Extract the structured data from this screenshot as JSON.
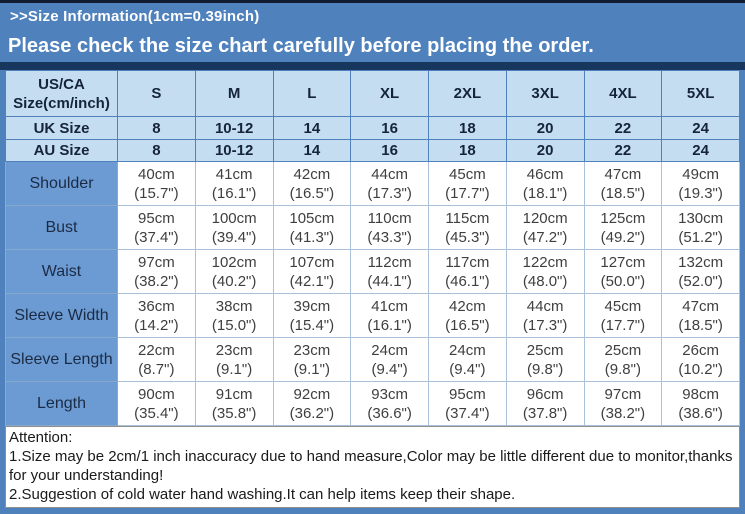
{
  "page": {
    "title_bar": ">>Size Information(1cm=0.39inch)",
    "notice_bar": "Please check the size chart carefully before placing the order."
  },
  "size_table": {
    "us_ca_label": "US/CA Size(cm/inch)",
    "sizes": [
      "S",
      "M",
      "L",
      "XL",
      "2XL",
      "3XL",
      "4XL",
      "5XL"
    ],
    "uk": {
      "label": "UK Size",
      "values": [
        "8",
        "10-12",
        "14",
        "16",
        "18",
        "20",
        "22",
        "24"
      ]
    },
    "au": {
      "label": "AU Size",
      "values": [
        "8",
        "10-12",
        "14",
        "16",
        "18",
        "20",
        "22",
        "24"
      ]
    },
    "rows": [
      {
        "label": "Shoulder",
        "cm": [
          "40cm",
          "41cm",
          "42cm",
          "44cm",
          "45cm",
          "46cm",
          "47cm",
          "49cm"
        ],
        "inch": [
          "(15.7\")",
          "(16.1\")",
          "(16.5\")",
          "(17.3\")",
          "(17.7\")",
          "(18.1\")",
          "(18.5\")",
          "(19.3\")"
        ]
      },
      {
        "label": "Bust",
        "cm": [
          "95cm",
          "100cm",
          "105cm",
          "110cm",
          "115cm",
          "120cm",
          "125cm",
          "130cm"
        ],
        "inch": [
          "(37.4\")",
          "(39.4\")",
          "(41.3\")",
          "(43.3\")",
          "(45.3\")",
          "(47.2\")",
          "(49.2\")",
          "(51.2\")"
        ]
      },
      {
        "label": "Waist",
        "cm": [
          "97cm",
          "102cm",
          "107cm",
          "112cm",
          "117cm",
          "122cm",
          "127cm",
          "132cm"
        ],
        "inch": [
          "(38.2\")",
          "(40.2\")",
          "(42.1\")",
          "(44.1\")",
          "(46.1\")",
          "(48.0\")",
          "(50.0\")",
          "(52.0\")"
        ]
      },
      {
        "label": "Sleeve Width",
        "cm": [
          "36cm",
          "38cm",
          "39cm",
          "41cm",
          "42cm",
          "44cm",
          "45cm",
          "47cm"
        ],
        "inch": [
          "(14.2\")",
          "(15.0\")",
          "(15.4\")",
          "(16.1\")",
          "(16.5\")",
          "(17.3\")",
          "(17.7\")",
          "(18.5\")"
        ]
      },
      {
        "label": "Sleeve Length",
        "cm": [
          "22cm",
          "23cm",
          "23cm",
          "24cm",
          "24cm",
          "25cm",
          "25cm",
          "26cm"
        ],
        "inch": [
          "(8.7\")",
          "(9.1\")",
          "(9.1\")",
          "(9.4\")",
          "(9.4\")",
          "(9.8\")",
          "(9.8\")",
          "(10.2\")"
        ]
      },
      {
        "label": "Length",
        "cm": [
          "90cm",
          "91cm",
          "92cm",
          "93cm",
          "95cm",
          "96cm",
          "97cm",
          "98cm"
        ],
        "inch": [
          "(35.4\")",
          "(35.8\")",
          "(36.2\")",
          "(36.6\")",
          "(37.4\")",
          "(37.8\")",
          "(38.2\")",
          "(38.6\")"
        ]
      }
    ]
  },
  "attention": {
    "title": "Attention:",
    "note1": "1.Size may be 2cm/1 inch inaccuracy due to hand measure,Color may be little different due to monitor,thanks for your understanding!",
    "note2": "2.Suggestion of cold water hand washing.It can help items keep their shape."
  },
  "colors": {
    "steel_blue_background": "#4f81bd",
    "dark_navy_strip": "#17375e",
    "header_cell_blue": "#c5ddf1",
    "label_column_blue": "#6b9bd2",
    "header_text_navy": "#15243c",
    "body_text_gray": "#3f3f3f"
  }
}
